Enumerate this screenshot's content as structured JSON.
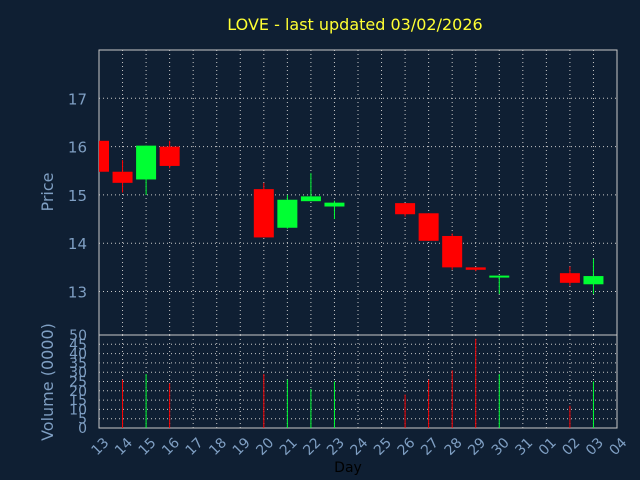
{
  "colors": {
    "background": "#0f1f33",
    "grid": "#c8c8c8",
    "frame": "#c8c8c8",
    "axis_text": "#7f9fc3",
    "title_text": "#ffff33",
    "up": "#00ff33",
    "down": "#ff0000"
  },
  "chart_data": {
    "type": "candlestick",
    "title": "LOVE - last updated 03/02/2026",
    "xlabel": "Day",
    "ylabel_price": "Price",
    "ylabel_volume": "Volume (0000)",
    "x_ticks": [
      "13",
      "14",
      "15",
      "16",
      "17",
      "18",
      "19",
      "20",
      "21",
      "22",
      "23",
      "24",
      "25",
      "26",
      "27",
      "28",
      "29",
      "30",
      "31",
      "01",
      "02",
      "03",
      "04"
    ],
    "price_ylim": [
      12.1,
      18.0
    ],
    "price_ticks": [
      13,
      14,
      15,
      16,
      17
    ],
    "volume_ylim": [
      0,
      50
    ],
    "volume_ticks": [
      0,
      5,
      10,
      15,
      20,
      25,
      30,
      35,
      40,
      45,
      50
    ],
    "grid": true,
    "candles": [
      {
        "day": "13",
        "open": 16.12,
        "high": 16.12,
        "low": 15.48,
        "close": 15.48,
        "volume": 0
      },
      {
        "day": "14",
        "open": 15.48,
        "high": 15.72,
        "low": 15.05,
        "close": 15.25,
        "volume": 26
      },
      {
        "day": "15",
        "open": 15.32,
        "high": 16.02,
        "low": 15.0,
        "close": 16.02,
        "volume": 29
      },
      {
        "day": "16",
        "open": 16.0,
        "high": 16.12,
        "low": 15.55,
        "close": 15.6,
        "volume": 24
      },
      {
        "day": "20",
        "open": 15.12,
        "high": 15.25,
        "low": 14.12,
        "close": 14.12,
        "volume": 29
      },
      {
        "day": "21",
        "open": 14.32,
        "high": 15.0,
        "low": 14.3,
        "close": 14.9,
        "volume": 26
      },
      {
        "day": "22",
        "open": 14.87,
        "high": 15.45,
        "low": 14.87,
        "close": 14.97,
        "volume": 21
      },
      {
        "day": "23",
        "open": 14.76,
        "high": 14.88,
        "low": 14.5,
        "close": 14.84,
        "volume": 25
      },
      {
        "day": "26",
        "open": 14.83,
        "high": 14.83,
        "low": 14.55,
        "close": 14.6,
        "volume": 18
      },
      {
        "day": "27",
        "open": 14.62,
        "high": 14.62,
        "low": 14.05,
        "close": 14.05,
        "volume": 26
      },
      {
        "day": "28",
        "open": 14.15,
        "high": 14.2,
        "low": 13.45,
        "close": 13.5,
        "volume": 31
      },
      {
        "day": "29",
        "open": 13.5,
        "high": 13.5,
        "low": 13.42,
        "close": 13.45,
        "volume": 48
      },
      {
        "day": "30",
        "open": 13.3,
        "high": 13.33,
        "low": 12.95,
        "close": 13.33,
        "volume": 29
      },
      {
        "day": "02",
        "open": 13.38,
        "high": 13.52,
        "low": 13.12,
        "close": 13.18,
        "volume": 12
      },
      {
        "day": "03",
        "open": 13.15,
        "high": 13.68,
        "low": 12.95,
        "close": 13.32,
        "volume": 25
      }
    ]
  }
}
